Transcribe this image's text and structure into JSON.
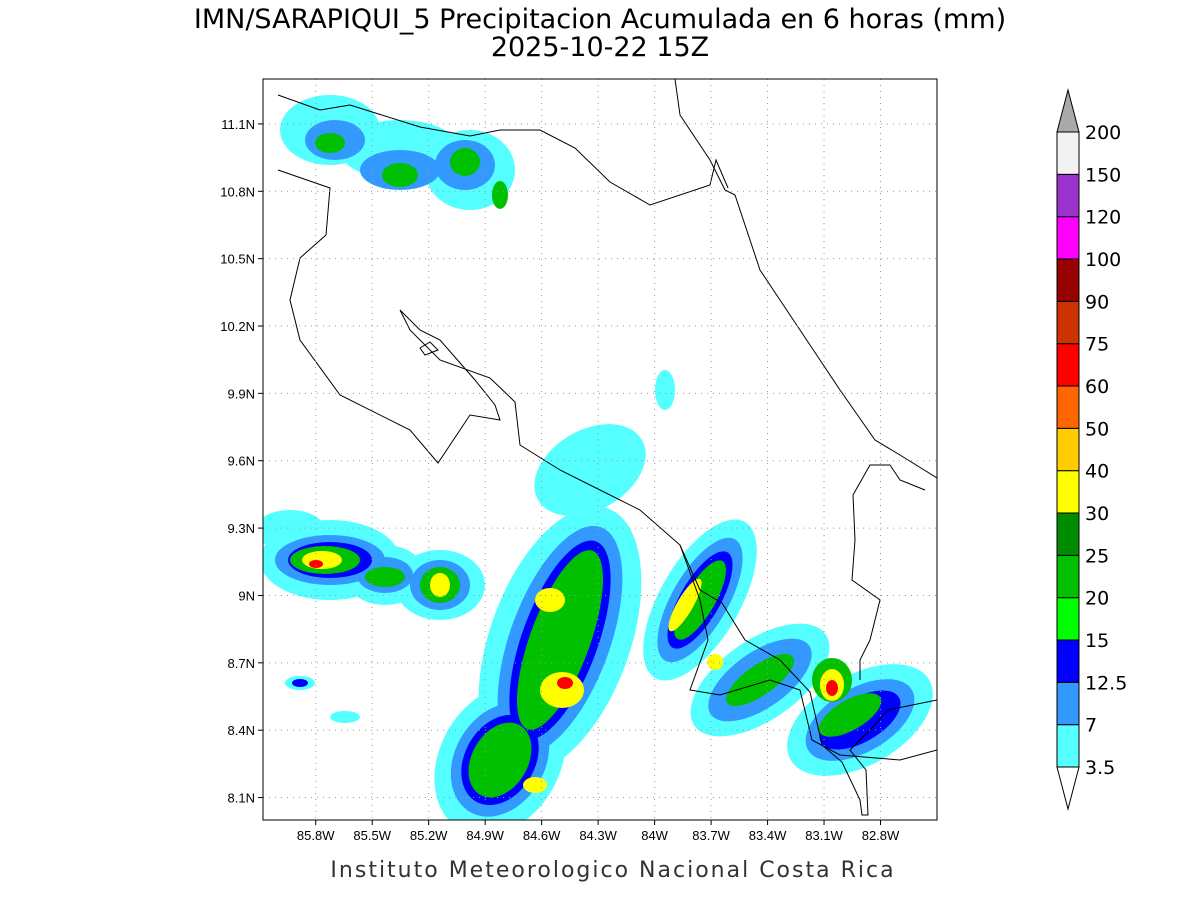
{
  "header": {
    "title": "IMN/SARAPIQUI_5 Precipitacion Acumulada en 6 horas (mm)",
    "subtitle": "2025-10-22 15Z"
  },
  "map": {
    "lon_range": [
      -86.08,
      -82.5
    ],
    "lat_range": [
      8.0,
      11.3
    ],
    "lon_ticks": [
      {
        "value": -85.8,
        "label": "85.8W"
      },
      {
        "value": -85.5,
        "label": "85.5W"
      },
      {
        "value": -85.2,
        "label": "85.2W"
      },
      {
        "value": -84.9,
        "label": "84.9W"
      },
      {
        "value": -84.6,
        "label": "84.6W"
      },
      {
        "value": -84.3,
        "label": "84.3W"
      },
      {
        "value": -84,
        "label": "84W"
      },
      {
        "value": -83.7,
        "label": "83.7W"
      },
      {
        "value": -83.4,
        "label": "83.4W"
      },
      {
        "value": -83.1,
        "label": "83.1W"
      },
      {
        "value": -82.8,
        "label": "82.8W"
      }
    ],
    "lat_ticks": [
      {
        "value": 11.1,
        "label": "11.1N"
      },
      {
        "value": 10.8,
        "label": "10.8N"
      },
      {
        "value": 10.5,
        "label": "10.5N"
      },
      {
        "value": 10.2,
        "label": "10.2N"
      },
      {
        "value": 9.9,
        "label": "9.9N"
      },
      {
        "value": 9.6,
        "label": "9.6N"
      },
      {
        "value": 9.3,
        "label": "9.3N"
      },
      {
        "value": 9,
        "label": "9N"
      },
      {
        "value": 8.7,
        "label": "8.7N"
      },
      {
        "value": 8.4,
        "label": "8.4N"
      },
      {
        "value": 8.1,
        "label": "8.1N"
      }
    ]
  },
  "colorbar": {
    "levels": [
      3.5,
      7,
      12.5,
      15,
      20,
      25,
      30,
      40,
      50,
      60,
      75,
      90,
      100,
      120,
      150,
      200
    ],
    "colors": [
      "#55ffff",
      "#3399ff",
      "#0000ff",
      "#00ff00",
      "#00c000",
      "#008c00",
      "#ffff00",
      "#ffcc00",
      "#ff6600",
      "#ff0000",
      "#cc3300",
      "#990000",
      "#ff00ff",
      "#9933cc",
      "#f2f2f2"
    ],
    "under_color": "#ffffff",
    "over_color": "#aaaaaa"
  },
  "footer": "Instituto Meteorologico Nacional Costa Rica"
}
